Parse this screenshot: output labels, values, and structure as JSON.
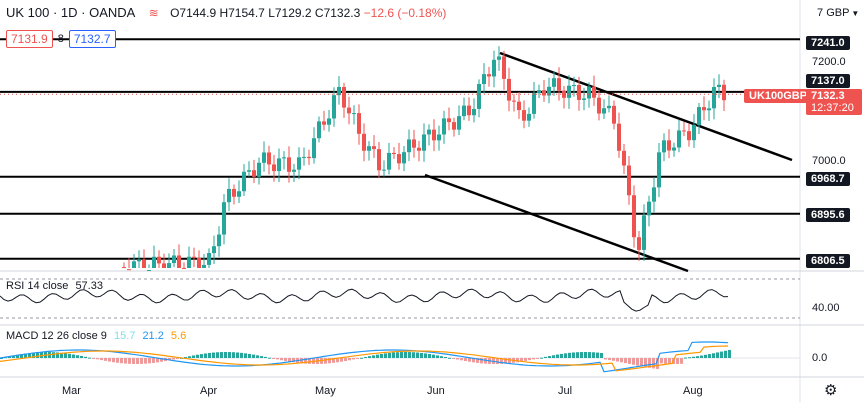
{
  "header": {
    "symbol": "UK 100 · 1D · OANDA",
    "open": "O7144.9",
    "high": "H7154.7",
    "low": "L7129.2",
    "close": "C7132.3",
    "change": "−12.6 (−0.18%)",
    "sell_price": "7131.9",
    "spread": "8",
    "buy_price": "7132.7",
    "currency": "GBP"
  },
  "price_axis": {
    "ticks": [
      "7200.0",
      "7000.0"
    ],
    "levels": [
      {
        "label": "7241.0",
        "value": 7241.0
      },
      {
        "label": "7137.0",
        "value": 7137.0
      },
      {
        "label": "6968.7",
        "value": 6968.7
      },
      {
        "label": "6895.6",
        "value": 6895.6
      },
      {
        "label": "6806.5",
        "value": 6806.5
      }
    ],
    "current": {
      "symbol": "UK100GBP",
      "price": "7132.3",
      "countdown": "12:37:20"
    }
  },
  "rsi": {
    "label": "RSI 14 close",
    "value": "57.33",
    "tick": "40.00"
  },
  "macd": {
    "label": "MACD 12 26 close 9",
    "hist": "15.7",
    "macd": "21.2",
    "signal": "5.6",
    "tick": "0.0"
  },
  "time_axis": [
    "Mar",
    "Apr",
    "May",
    "Jun",
    "Jul",
    "Aug"
  ],
  "colors": {
    "up": "#26a69a",
    "down": "#ef5350",
    "macd": "#2196f3",
    "signal": "#ff9800",
    "lines": "#000000"
  },
  "chart_data": {
    "type": "candlestick",
    "ylim": [
      6790,
      7260
    ],
    "horizontal_levels": [
      7241.0,
      7137.0,
      6968.7,
      6895.6,
      6806.5
    ],
    "last_price": 7132.3
  }
}
